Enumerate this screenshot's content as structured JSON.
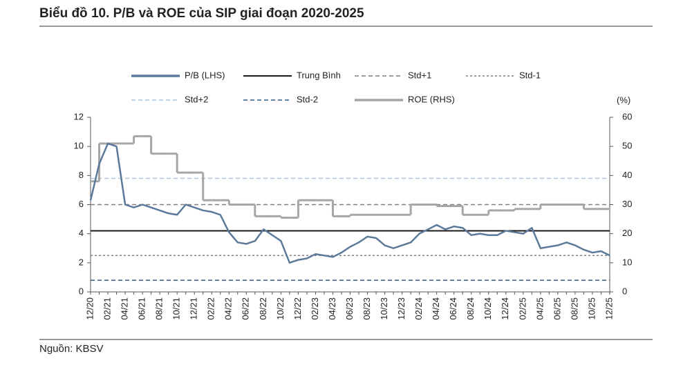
{
  "title": "Biểu đồ 10. P/B và ROE của SIP giai đoạn 2020-2025",
  "source": "Nguồn: KBSV",
  "chart_data": {
    "type": "line",
    "categories": [
      "12/20",
      null,
      "02/21",
      null,
      "04/21",
      null,
      "06/21",
      null,
      "08/21",
      null,
      "10/21",
      null,
      "12/21",
      null,
      "02/22",
      null,
      "04/22",
      null,
      "06/22",
      null,
      "08/22",
      null,
      "10/22",
      null,
      "12/22",
      null,
      "02/23",
      null,
      "04/23",
      null,
      "06/23",
      null,
      "08/23",
      null,
      "10/23",
      null,
      "12/23",
      null,
      "02/24",
      null,
      "04/24",
      null,
      "06/24",
      null,
      "08/24",
      null,
      "10/24",
      null,
      "12/24",
      null,
      "02/25",
      null,
      "04/25",
      null,
      "06/25",
      null,
      "08/25",
      null,
      "10/25",
      null,
      "12/25"
    ],
    "series": [
      {
        "name": "P/B (LHS)",
        "color": "#5b7a9a",
        "values": [
          6.3,
          8.8,
          10.2,
          10.0,
          6.0,
          5.8,
          6.0,
          5.8,
          5.6,
          5.4,
          5.3,
          6.0,
          5.8,
          5.6,
          5.5,
          5.3,
          4.1,
          3.4,
          3.3,
          3.5,
          4.3,
          3.9,
          3.5,
          2.0,
          2.2,
          2.3,
          2.6,
          2.5,
          2.4,
          2.7,
          3.1,
          3.4,
          3.8,
          3.7,
          3.2,
          3.0,
          3.2,
          3.4,
          4.0,
          4.3,
          4.6,
          4.3,
          4.5,
          4.4,
          3.9,
          4.0,
          3.9,
          3.9,
          4.2,
          4.1,
          4.0,
          4.4,
          3.0,
          3.1,
          3.2,
          3.4,
          3.2,
          2.9,
          2.7,
          2.8,
          2.5
        ]
      },
      {
        "name": "ROE (RHS)",
        "color": "#a6a6a6",
        "axis": "y2",
        "step": "after",
        "values": [
          38,
          51,
          51,
          51,
          51,
          53.5,
          53.5,
          47.5,
          47.5,
          47.5,
          41,
          41,
          41,
          31.5,
          31.5,
          31.5,
          30,
          30,
          30,
          26,
          26,
          26,
          25.5,
          25.5,
          31.5,
          31.5,
          31.5,
          31.5,
          26,
          26,
          26.5,
          26.5,
          26.5,
          26.5,
          26.5,
          26.5,
          26.5,
          30,
          30,
          30,
          29.5,
          29.5,
          29.5,
          26.5,
          26.5,
          26.5,
          28,
          28,
          28,
          28.5,
          28.5,
          28.5,
          30,
          30,
          30,
          30,
          30,
          28.5,
          28.5,
          28.5,
          28.5
        ]
      }
    ],
    "reference_lines": [
      {
        "name": "Trung Bình",
        "value": 4.2,
        "color": "#1a1a1a",
        "dash": "solid"
      },
      {
        "name": "Std+1",
        "value": 6.0,
        "color": "#7f7f7f",
        "dash": "dashed"
      },
      {
        "name": "Std-1",
        "value": 2.5,
        "color": "#7f7f7f",
        "dash": "dotted"
      },
      {
        "name": "Std+2",
        "value": 7.8,
        "color": "#a9c4dc",
        "dash": "dashed"
      },
      {
        "name": "Std-2",
        "value": 0.8,
        "color": "#2e5a87",
        "dash": "dashed"
      }
    ],
    "ylim": [
      0,
      12
    ],
    "yticks": [
      0,
      2,
      4,
      6,
      8,
      10,
      12
    ],
    "y2lim": [
      0,
      60
    ],
    "y2ticks": [
      0,
      10,
      20,
      30,
      40,
      50,
      60
    ],
    "y2_label": "(%)"
  }
}
